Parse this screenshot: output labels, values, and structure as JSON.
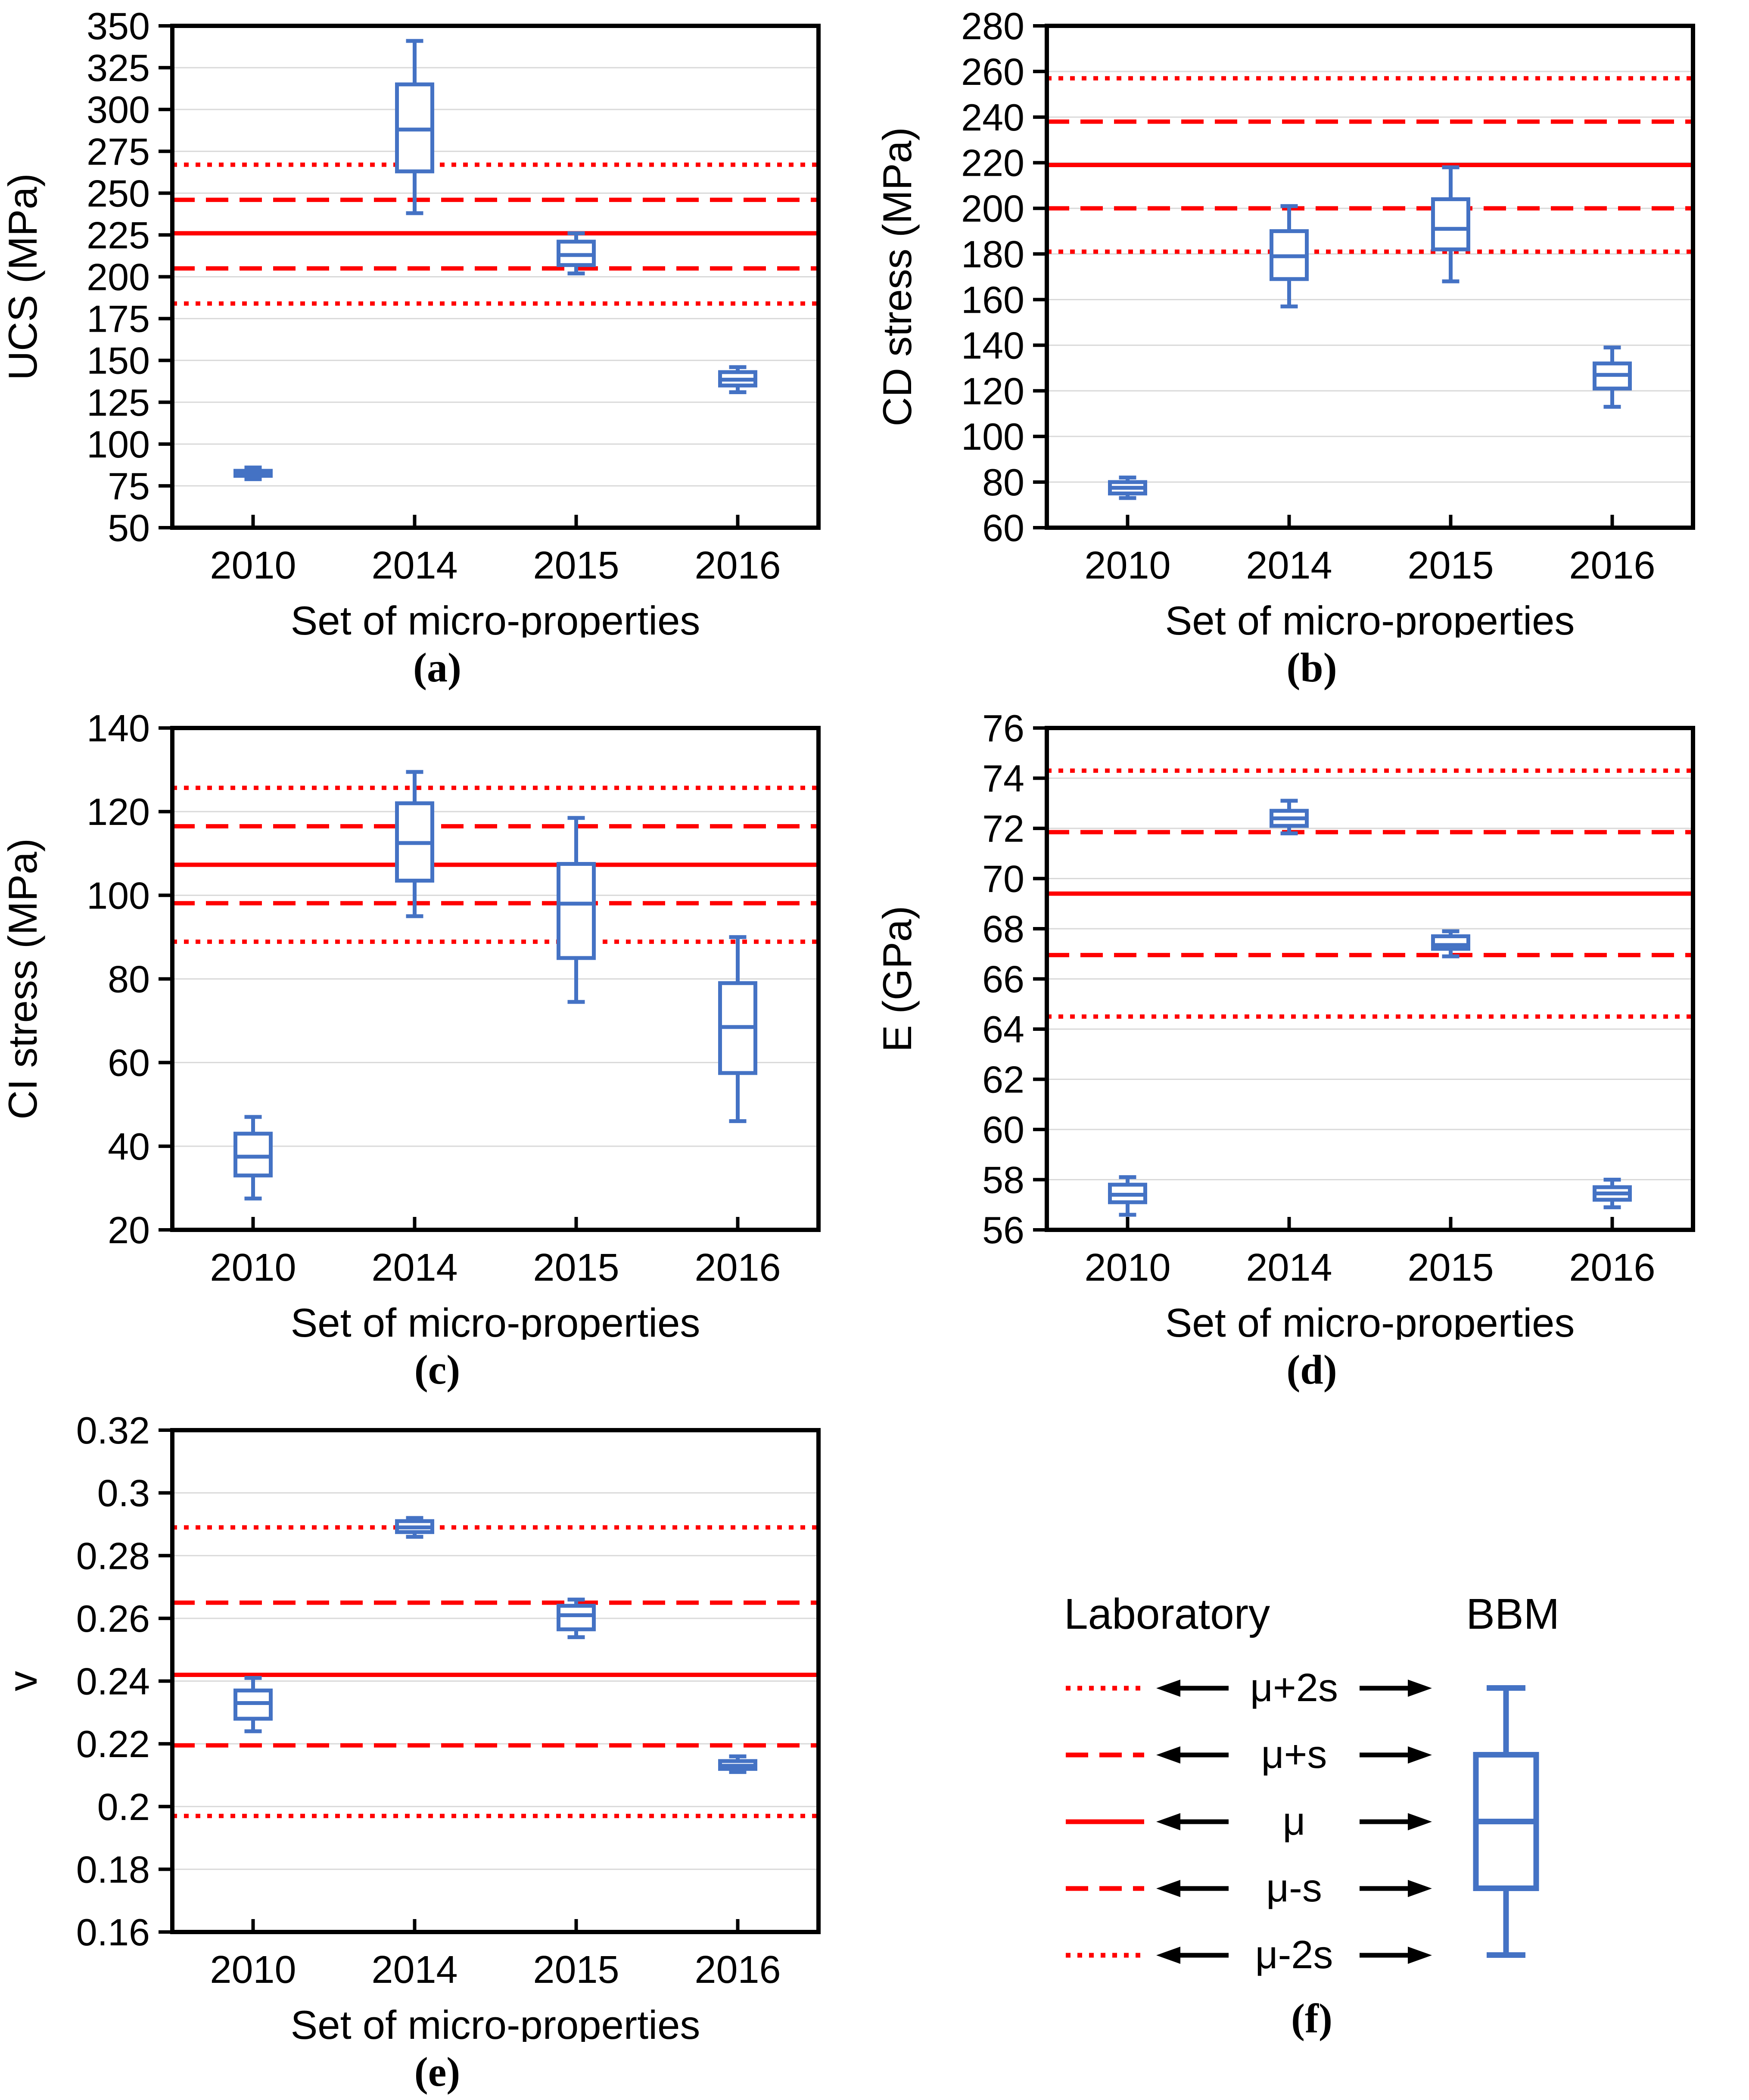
{
  "figure": {
    "background": "#ffffff",
    "colors": {
      "box_blue": "#4472C4",
      "ref_red": "#FF0000",
      "gridline": "#D9D9D9",
      "axis_black": "#000000",
      "text_black": "#000000"
    },
    "x_axis_title": "Set of micro-properties",
    "categories": [
      "2010",
      "2014",
      "2015",
      "2016"
    ]
  },
  "chart_data": [
    {
      "type": "boxplot",
      "caption": "(a)",
      "ylabel": "UCS (MPa)",
      "xlabel": "Set of micro-properties",
      "ylim": [
        50,
        350
      ],
      "ystep": 25,
      "grid": true,
      "categories": [
        "2010",
        "2014",
        "2015",
        "2016"
      ],
      "ref_lines": [
        {
          "label": "μ+2s",
          "style": "dotted",
          "value": 267
        },
        {
          "label": "μ+s",
          "style": "dashed",
          "value": 246
        },
        {
          "label": "μ",
          "style": "solid",
          "value": 226
        },
        {
          "label": "μ-s",
          "style": "dashed",
          "value": 205
        },
        {
          "label": "μ-2s",
          "style": "dotted",
          "value": 184
        }
      ],
      "boxes": [
        {
          "category": "2010",
          "low": 79,
          "q1": 81,
          "median": 82.5,
          "q3": 84,
          "high": 86
        },
        {
          "category": "2014",
          "low": 238,
          "q1": 263,
          "median": 288,
          "q3": 315,
          "high": 341
        },
        {
          "category": "2015",
          "low": 202,
          "q1": 207,
          "median": 213,
          "q3": 221,
          "high": 226
        },
        {
          "category": "2016",
          "low": 131,
          "q1": 135,
          "median": 138.5,
          "q3": 143,
          "high": 146
        }
      ]
    },
    {
      "type": "boxplot",
      "caption": "(b)",
      "ylabel": "CD stress (MPa)",
      "xlabel": "Set of micro-properties",
      "ylim": [
        60,
        280
      ],
      "ystep": 20,
      "grid": true,
      "categories": [
        "2010",
        "2014",
        "2015",
        "2016"
      ],
      "ref_lines": [
        {
          "label": "μ+2s",
          "style": "dotted",
          "value": 257
        },
        {
          "label": "μ+s",
          "style": "dashed",
          "value": 238
        },
        {
          "label": "μ",
          "style": "solid",
          "value": 219
        },
        {
          "label": "μ-s",
          "style": "dashed",
          "value": 200
        },
        {
          "label": "μ-2s",
          "style": "dotted",
          "value": 181
        }
      ],
      "boxes": [
        {
          "category": "2010",
          "low": 73,
          "q1": 75,
          "median": 77.5,
          "q3": 80,
          "high": 82
        },
        {
          "category": "2014",
          "low": 157,
          "q1": 169,
          "median": 179,
          "q3": 190,
          "high": 201
        },
        {
          "category": "2015",
          "low": 168,
          "q1": 182,
          "median": 191,
          "q3": 204,
          "high": 218
        },
        {
          "category": "2016",
          "low": 113,
          "q1": 121,
          "median": 127,
          "q3": 132,
          "high": 139
        }
      ]
    },
    {
      "type": "boxplot",
      "caption": "(c)",
      "ylabel": "CI stress (MPa)",
      "xlabel": "Set of micro-properties",
      "ylim": [
        20,
        140
      ],
      "ystep": 20,
      "grid": true,
      "categories": [
        "2010",
        "2014",
        "2015",
        "2016"
      ],
      "ref_lines": [
        {
          "label": "μ+2s",
          "style": "dotted",
          "value": 125.7
        },
        {
          "label": "μ+s",
          "style": "dashed",
          "value": 116.5
        },
        {
          "label": "μ",
          "style": "solid",
          "value": 107.3
        },
        {
          "label": "μ-s",
          "style": "dashed",
          "value": 98.1
        },
        {
          "label": "μ-2s",
          "style": "dotted",
          "value": 88.9
        }
      ],
      "boxes": [
        {
          "category": "2010",
          "low": 27.5,
          "q1": 33,
          "median": 37.5,
          "q3": 43,
          "high": 47
        },
        {
          "category": "2014",
          "low": 95,
          "q1": 103.5,
          "median": 112.5,
          "q3": 122,
          "high": 129.5
        },
        {
          "category": "2015",
          "low": 74.5,
          "q1": 85,
          "median": 98,
          "q3": 107.5,
          "high": 118.5
        },
        {
          "category": "2016",
          "low": 46,
          "q1": 57.5,
          "median": 68.5,
          "q3": 79,
          "high": 90
        }
      ]
    },
    {
      "type": "boxplot",
      "caption": "(d)",
      "ylabel": "E (GPa)",
      "xlabel": "Set of micro-properties",
      "ylim": [
        56,
        76
      ],
      "ystep": 2,
      "grid": true,
      "categories": [
        "2010",
        "2014",
        "2015",
        "2016"
      ],
      "ref_lines": [
        {
          "label": "μ+2s",
          "style": "dotted",
          "value": 74.3
        },
        {
          "label": "μ+s",
          "style": "dashed",
          "value": 71.85
        },
        {
          "label": "μ",
          "style": "solid",
          "value": 69.4
        },
        {
          "label": "μ-s",
          "style": "dashed",
          "value": 66.95
        },
        {
          "label": "μ-2s",
          "style": "dotted",
          "value": 64.5
        }
      ],
      "boxes": [
        {
          "category": "2010",
          "low": 56.6,
          "q1": 57.1,
          "median": 57.4,
          "q3": 57.8,
          "high": 58.1
        },
        {
          "category": "2014",
          "low": 71.8,
          "q1": 72.1,
          "median": 72.4,
          "q3": 72.7,
          "high": 73.1
        },
        {
          "category": "2015",
          "low": 66.9,
          "q1": 67.2,
          "median": 67.35,
          "q3": 67.7,
          "high": 67.9
        },
        {
          "category": "2016",
          "low": 56.9,
          "q1": 57.2,
          "median": 57.45,
          "q3": 57.7,
          "high": 58.0
        }
      ]
    },
    {
      "type": "boxplot",
      "caption": "(e)",
      "ylabel": "v",
      "xlabel": "Set of micro-properties",
      "ylim": [
        0.16,
        0.32
      ],
      "ystep": 0.02,
      "grid": true,
      "categories": [
        "2010",
        "2014",
        "2015",
        "2016"
      ],
      "ref_lines": [
        {
          "label": "μ+2s",
          "style": "dotted",
          "value": 0.289
        },
        {
          "label": "μ+s",
          "style": "dashed",
          "value": 0.265
        },
        {
          "label": "μ",
          "style": "solid",
          "value": 0.242
        },
        {
          "label": "μ-s",
          "style": "dashed",
          "value": 0.2195
        },
        {
          "label": "μ-2s",
          "style": "dotted",
          "value": 0.197
        }
      ],
      "boxes": [
        {
          "category": "2010",
          "low": 0.224,
          "q1": 0.228,
          "median": 0.233,
          "q3": 0.237,
          "high": 0.241
        },
        {
          "category": "2014",
          "low": 0.286,
          "q1": 0.2875,
          "median": 0.289,
          "q3": 0.291,
          "high": 0.292
        },
        {
          "category": "2015",
          "low": 0.254,
          "q1": 0.2565,
          "median": 0.261,
          "q3": 0.264,
          "high": 0.266
        },
        {
          "category": "2016",
          "low": 0.211,
          "q1": 0.212,
          "median": 0.213,
          "q3": 0.2145,
          "high": 0.216
        }
      ]
    }
  ],
  "legend": {
    "caption": "(f)",
    "laboratory_title": "Laboratory",
    "bbm_title": "BBM",
    "rows": [
      {
        "style": "dotted",
        "label": "μ+2s"
      },
      {
        "style": "dashed",
        "label": "μ+s"
      },
      {
        "style": "solid",
        "label": "μ"
      },
      {
        "style": "dashed",
        "label": "μ-s"
      },
      {
        "style": "dotted",
        "label": "μ-2s"
      }
    ]
  }
}
